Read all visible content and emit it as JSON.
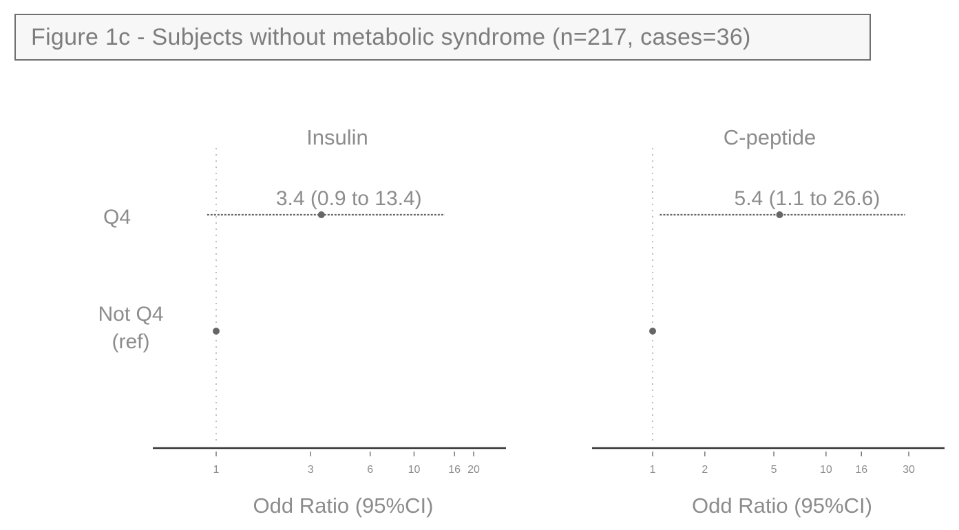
{
  "figure": {
    "title": "Figure 1c - Subjects without metabolic syndrome (n=217, cases=36)"
  },
  "rows": {
    "top_label": "Q4",
    "bottom_label_line1": "Not Q4",
    "bottom_label_line2": "(ref)"
  },
  "chart_data": [
    {
      "type": "scatter",
      "subtype": "forest-plot",
      "title": "Insulin",
      "xlabel": "Odd Ratio (95%CI)",
      "x_scale": "log",
      "xlim": [
        1,
        20
      ],
      "x_ticks": [
        1,
        3,
        6,
        10,
        16,
        20
      ],
      "reference_line": 1,
      "categories": [
        "Q4",
        "Not Q4 (ref)"
      ],
      "estimates": [
        {
          "category": "Q4",
          "or": 3.4,
          "ci_low": 0.9,
          "ci_high": 13.4,
          "label": "3.4 (0.9 to 13.4)"
        },
        {
          "category": "Not Q4 (ref)",
          "or": 1.0,
          "ci_low": 1.0,
          "ci_high": 1.0,
          "label": ""
        }
      ]
    },
    {
      "type": "scatter",
      "subtype": "forest-plot",
      "title": "C-peptide",
      "xlabel": "Odd Ratio (95%CI)",
      "x_scale": "log",
      "xlim": [
        1,
        30
      ],
      "x_ticks": [
        1,
        2,
        5,
        10,
        16,
        30
      ],
      "reference_line": 1,
      "categories": [
        "Q4",
        "Not Q4 (ref)"
      ],
      "estimates": [
        {
          "category": "Q4",
          "or": 5.4,
          "ci_low": 1.1,
          "ci_high": 26.6,
          "label": "5.4 (1.1 to 26.6)"
        },
        {
          "category": "Not Q4 (ref)",
          "or": 1.0,
          "ci_low": 1.0,
          "ci_high": 1.0,
          "label": ""
        }
      ]
    }
  ]
}
